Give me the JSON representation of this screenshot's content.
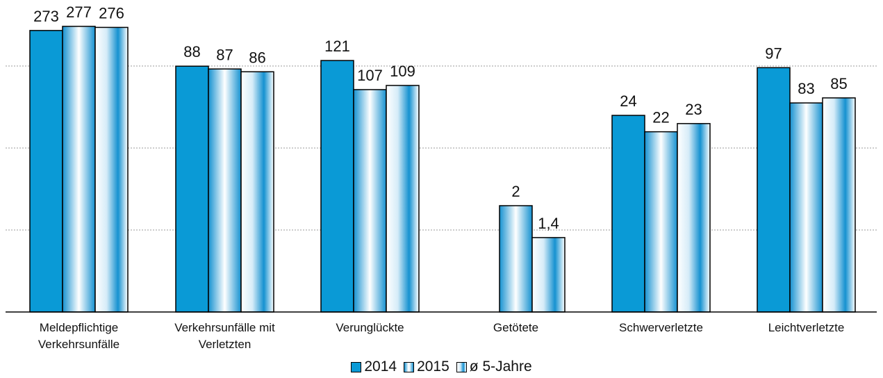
{
  "chart_data": {
    "type": "bar",
    "categories": [
      [
        "Meldepflichtige",
        "Verkehrsunfälle"
      ],
      [
        "Verkehrsunfälle mit",
        "Verletzten"
      ],
      [
        "Verunglückte"
      ],
      [
        "Getötete"
      ],
      [
        "Schwerverletzte"
      ],
      [
        "Leichtverletzte"
      ]
    ],
    "series": [
      {
        "name": "2014",
        "values": [
          273,
          88,
          121,
          0,
          24,
          97
        ],
        "labels": [
          "273",
          "88",
          "121",
          "",
          "24",
          "97"
        ]
      },
      {
        "name": "2015",
        "values": [
          277,
          87,
          107,
          2,
          22,
          83
        ],
        "labels": [
          "277",
          "87",
          "107",
          "2",
          "22",
          "83"
        ]
      },
      {
        "name": "ø 5-Jahre",
        "values": [
          276,
          86,
          109,
          1.4,
          23,
          85
        ],
        "labels": [
          "276",
          "86",
          "109",
          "1,4",
          "23",
          "85"
        ]
      }
    ],
    "axis_scales": [
      "broken-per-category"
    ],
    "gridlines": true,
    "legend_position": "bottom-center",
    "colors": {
      "2014": "#0a9ad6",
      "2015": "#1591d0",
      "ø 5-Jahre": "#1591d0"
    }
  }
}
